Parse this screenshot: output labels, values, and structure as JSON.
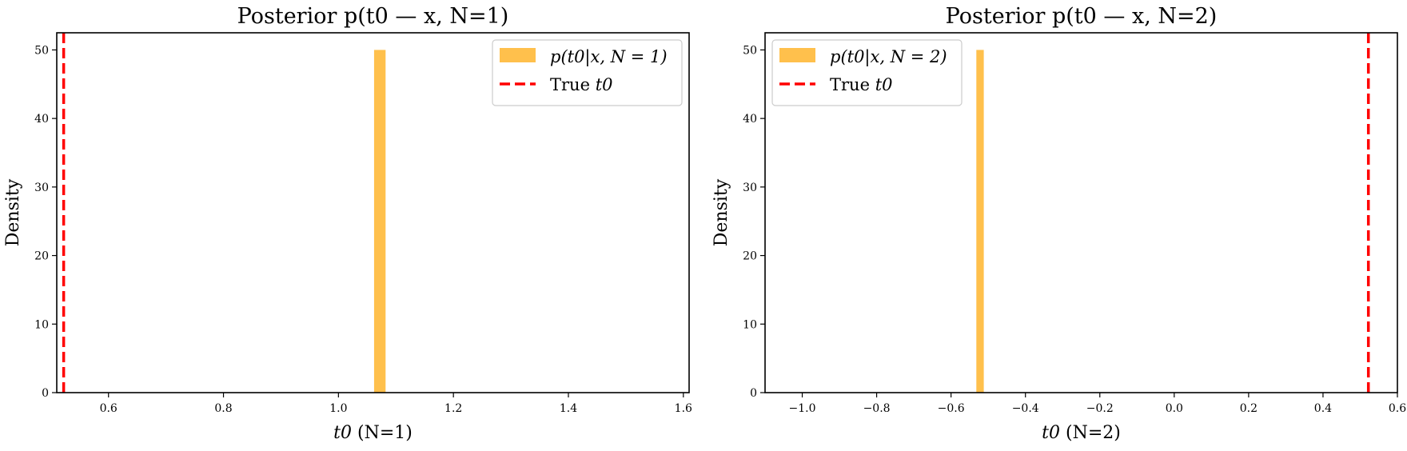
{
  "chart_data": [
    {
      "type": "bar",
      "title": "Posterior p(t0 — x, N=1)",
      "xlabel_var": "t0",
      "xlabel_rest": " (N=1)",
      "ylabel": "Density",
      "xlim": [
        0.51,
        1.61
      ],
      "ylim": [
        0,
        52.5
      ],
      "xticks": [
        0.6,
        0.8,
        1.0,
        1.2,
        1.4,
        1.6
      ],
      "xtick_labels": [
        "0.6",
        "0.8",
        "1.0",
        "1.2",
        "1.4",
        "1.6"
      ],
      "yticks": [
        0,
        10,
        20,
        30,
        40,
        50
      ],
      "ytick_labels": [
        "0",
        "10",
        "20",
        "30",
        "40",
        "50"
      ],
      "bars": [
        {
          "x_start": 1.062,
          "x_end": 1.082,
          "density": 50
        }
      ],
      "true_value": 0.522,
      "legend": {
        "position": "upper right",
        "hist_label_math": "p(t0|x, N = 1)",
        "line_label_prefix": "True ",
        "line_label_var": "t0"
      },
      "colors": {
        "hist": "#ffa500",
        "line": "#ff0000"
      }
    },
    {
      "type": "bar",
      "title": "Posterior p(t0 — x, N=2)",
      "xlabel_var": "t0",
      "xlabel_rest": " (N=2)",
      "ylabel": "Density",
      "xlim": [
        -1.1,
        0.6
      ],
      "ylim": [
        0,
        52.5
      ],
      "xticks": [
        -1.0,
        -0.8,
        -0.6,
        -0.4,
        -0.2,
        0.0,
        0.2,
        0.4,
        0.6
      ],
      "xtick_labels": [
        "−1.0",
        "−0.8",
        "−0.6",
        "−0.4",
        "−0.2",
        "0.0",
        "0.2",
        "0.4",
        "0.6"
      ],
      "yticks": [
        0,
        10,
        20,
        30,
        40,
        50
      ],
      "ytick_labels": [
        "0",
        "10",
        "20",
        "30",
        "40",
        "50"
      ],
      "bars": [
        {
          "x_start": -0.532,
          "x_end": -0.512,
          "density": 50
        }
      ],
      "true_value": 0.522,
      "legend": {
        "position": "upper left",
        "hist_label_math": "p(t0|x, N = 2)",
        "line_label_prefix": "True ",
        "line_label_var": "t0"
      },
      "colors": {
        "hist": "#ffa500",
        "line": "#ff0000"
      }
    }
  ]
}
